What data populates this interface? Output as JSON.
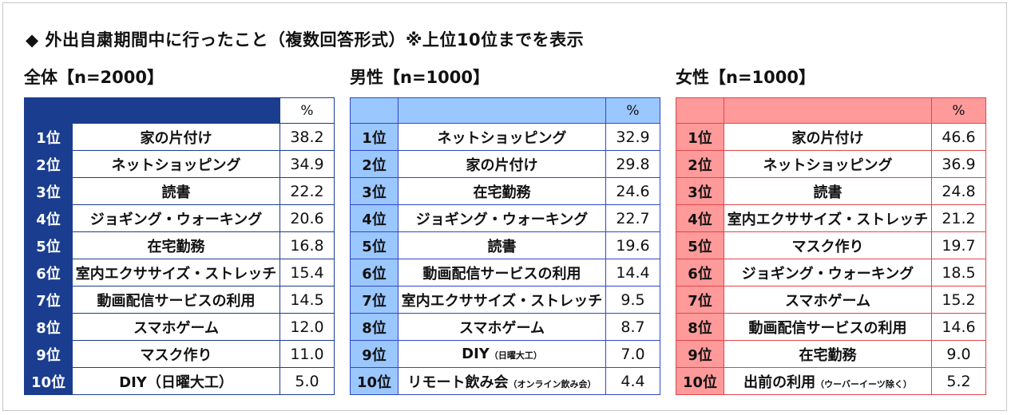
{
  "title": "◆ 外出自粛期間中に行ったこと（複数回答形式）※上位10位までを表示",
  "panels": [
    {
      "heading": "全体【n=2000】",
      "pct_header": "%",
      "rows": [
        {
          "rank": "1位",
          "item": "家の片付け",
          "note": "",
          "value": "38.2"
        },
        {
          "rank": "2位",
          "item": "ネットショッピング",
          "note": "",
          "value": "34.9"
        },
        {
          "rank": "3位",
          "item": "読書",
          "note": "",
          "value": "22.2"
        },
        {
          "rank": "4位",
          "item": "ジョギング・ウォーキング",
          "note": "",
          "value": "20.6"
        },
        {
          "rank": "5位",
          "item": "在宅勤務",
          "note": "",
          "value": "16.8"
        },
        {
          "rank": "6位",
          "item": "室内エクササイズ・ストレッチ",
          "note": "",
          "value": "15.4"
        },
        {
          "rank": "7位",
          "item": "動画配信サービスの利用",
          "note": "",
          "value": "14.5"
        },
        {
          "rank": "8位",
          "item": "スマホゲーム",
          "note": "",
          "value": "12.0"
        },
        {
          "rank": "9位",
          "item": "マスク作り",
          "note": "",
          "value": "11.0"
        },
        {
          "rank": "10位",
          "item": "DIY（日曜大工）",
          "note": "",
          "value": "5.0"
        }
      ]
    },
    {
      "heading": "男性【n=1000】",
      "pct_header": "%",
      "rows": [
        {
          "rank": "1位",
          "item": "ネットショッピング",
          "note": "",
          "value": "32.9"
        },
        {
          "rank": "2位",
          "item": "家の片付け",
          "note": "",
          "value": "29.8"
        },
        {
          "rank": "3位",
          "item": "在宅勤務",
          "note": "",
          "value": "24.6"
        },
        {
          "rank": "4位",
          "item": "ジョギング・ウォーキング",
          "note": "",
          "value": "22.7"
        },
        {
          "rank": "5位",
          "item": "読書",
          "note": "",
          "value": "19.6"
        },
        {
          "rank": "6位",
          "item": "動画配信サービスの利用",
          "note": "",
          "value": "14.4"
        },
        {
          "rank": "7位",
          "item": "室内エクササイズ・ストレッチ",
          "note": "",
          "value": "9.5"
        },
        {
          "rank": "8位",
          "item": "スマホゲーム",
          "note": "",
          "value": "8.7"
        },
        {
          "rank": "9位",
          "item": "DIY",
          "note": "（日曜大工）",
          "value": "7.0"
        },
        {
          "rank": "10位",
          "item": "リモート飲み会",
          "note": "（オンライン飲み会）",
          "value": "4.4"
        }
      ]
    },
    {
      "heading": "女性【n=1000】",
      "pct_header": "%",
      "rows": [
        {
          "rank": "1位",
          "item": "家の片付け",
          "note": "",
          "value": "46.6"
        },
        {
          "rank": "2位",
          "item": "ネットショッピング",
          "note": "",
          "value": "36.9"
        },
        {
          "rank": "3位",
          "item": "読書",
          "note": "",
          "value": "24.8"
        },
        {
          "rank": "4位",
          "item": "室内エクササイズ・ストレッチ",
          "note": "",
          "value": "21.2"
        },
        {
          "rank": "5位",
          "item": "マスク作り",
          "note": "",
          "value": "19.7"
        },
        {
          "rank": "6位",
          "item": "ジョギング・ウォーキング",
          "note": "",
          "value": "18.5"
        },
        {
          "rank": "7位",
          "item": "スマホゲーム",
          "note": "",
          "value": "15.2"
        },
        {
          "rank": "8位",
          "item": "動画配信サービスの利用",
          "note": "",
          "value": "14.6"
        },
        {
          "rank": "9位",
          "item": "在宅勤務",
          "note": "",
          "value": "9.0"
        },
        {
          "rank": "10位",
          "item": "出前の利用",
          "note": "（ウーバーイーツ除く）",
          "value": "5.2"
        }
      ]
    }
  ],
  "colors": {
    "total_header": "#1a3d8f",
    "male_header": "#9bc7ff",
    "male_border": "#2f47c9",
    "female_header": "#ff9a9a",
    "female_border": "#e0454a"
  }
}
